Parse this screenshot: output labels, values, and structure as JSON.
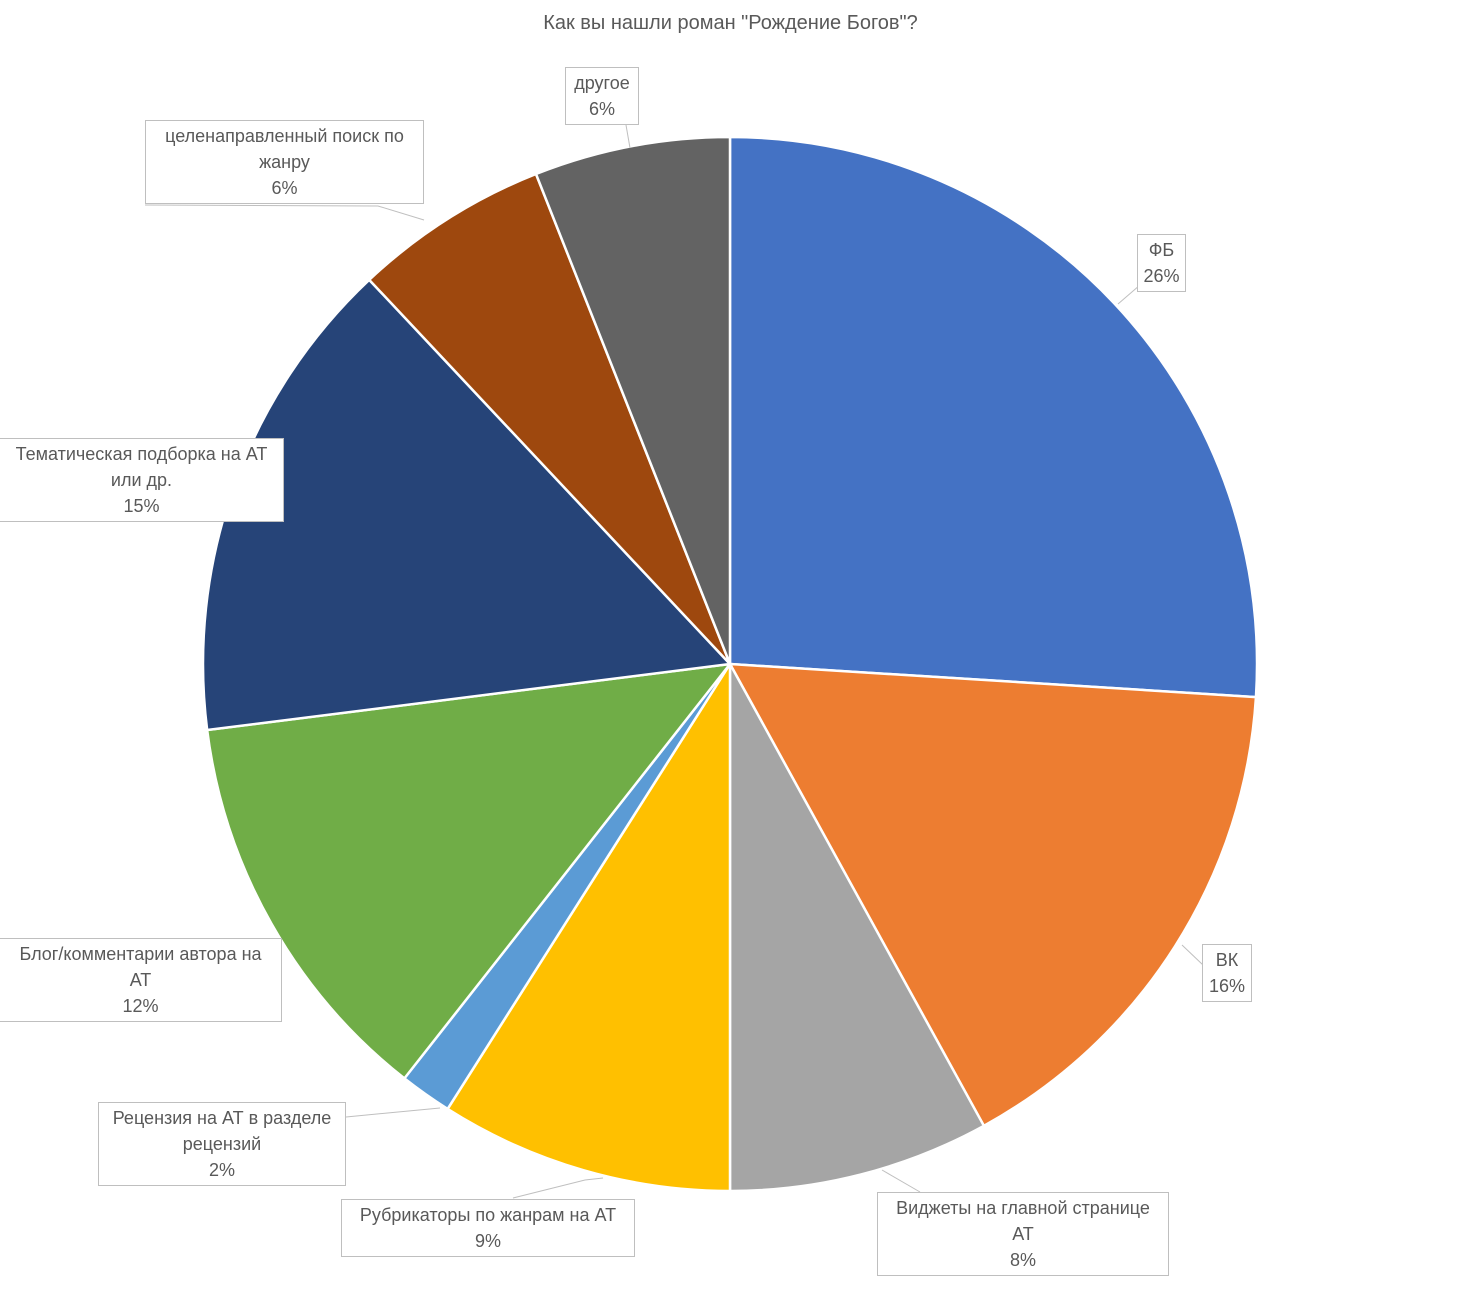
{
  "chart_data": {
    "type": "pie",
    "title": "Как вы нашли роман \"Рождение Богов\"?",
    "slices": [
      {
        "label": "ФБ",
        "line1": "ФБ",
        "line2": "",
        "percent_label": "26%",
        "value": 26,
        "color": "#4472C4"
      },
      {
        "label": "ВК",
        "line1": "ВК",
        "line2": "",
        "percent_label": "16%",
        "value": 16,
        "color": "#ED7D31"
      },
      {
        "label": "Виджеты на главной странице АТ",
        "line1": "Виджеты на главной странице",
        "line2": "АТ",
        "percent_label": "8%",
        "value": 8,
        "color": "#A5A5A5"
      },
      {
        "label": "Рубрикаторы по жанрам на АТ",
        "line1": "Рубрикаторы по жанрам на АТ",
        "line2": "",
        "percent_label": "9%",
        "value": 9,
        "color": "#FFC000"
      },
      {
        "label": "Рецензия на АТ в разделе рецензий",
        "line1": "Рецензия на АТ в разделе",
        "line2": "рецензий",
        "percent_label": "2%",
        "value": 1.6,
        "color": "#5B9BD5"
      },
      {
        "label": "Блог/комментарии автора на АТ",
        "line1": "Блог/комментарии автора на",
        "line2": "АТ",
        "percent_label": "12%",
        "value": 12.4,
        "color": "#70AD47"
      },
      {
        "label": "Тематическая подборка на АТ или др.",
        "line1": "Тематическая подборка на АТ",
        "line2": "или др.",
        "percent_label": "15%",
        "value": 15,
        "color": "#264478"
      },
      {
        "label": "целенаправленный поиск по жанру",
        "line1": "целенаправленный поиск по",
        "line2": "жанру",
        "percent_label": "6%",
        "value": 6,
        "color": "#9E480E"
      },
      {
        "label": "другое",
        "line1": "другое",
        "line2": "",
        "percent_label": "6%",
        "value": 6,
        "color": "#636363"
      }
    ]
  }
}
